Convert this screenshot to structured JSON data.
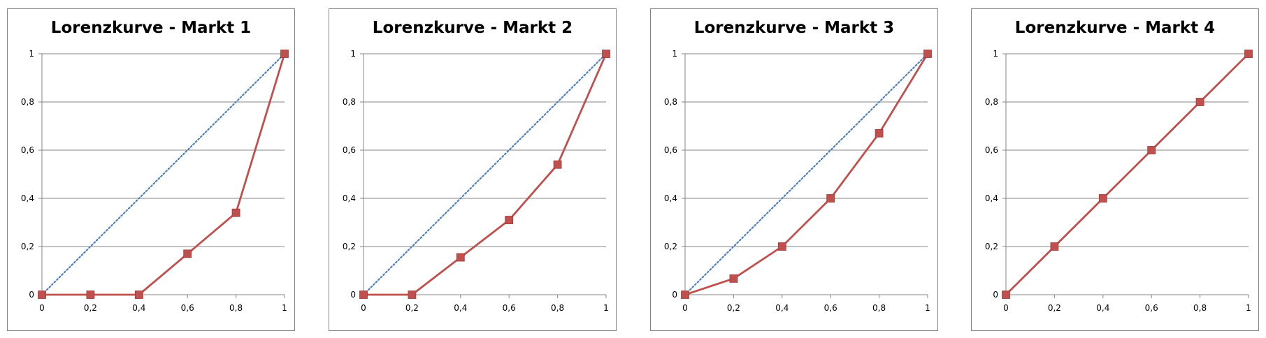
{
  "chart_data": [
    {
      "type": "line",
      "title": "Lorenzkurve - Markt 1",
      "xlabel": "",
      "ylabel": "",
      "xlim": [
        0,
        1
      ],
      "ylim": [
        0,
        1
      ],
      "x_ticks": [
        "0",
        "0,2",
        "0,4",
        "0,6",
        "0,8",
        "1"
      ],
      "y_ticks": [
        "0",
        "0,2",
        "0,4",
        "0,6",
        "0,8",
        "1"
      ],
      "grid": "horizontal",
      "legend": "none",
      "series": [
        {
          "style": "dotted",
          "color": "#4f81bd",
          "x": [
            0,
            1
          ],
          "y": [
            0,
            1
          ]
        },
        {
          "style": "solid-square-markers",
          "color": "#c0504d",
          "x": [
            0,
            0.2,
            0.4,
            0.6,
            0.8,
            1
          ],
          "y": [
            0,
            0,
            0,
            0.17,
            0.34,
            1
          ]
        }
      ]
    },
    {
      "type": "line",
      "title": "Lorenzkurve - Markt 2",
      "xlabel": "",
      "ylabel": "",
      "xlim": [
        0,
        1
      ],
      "ylim": [
        0,
        1
      ],
      "x_ticks": [
        "0",
        "0,2",
        "0,4",
        "0,6",
        "0,8",
        "1"
      ],
      "y_ticks": [
        "0",
        "0,2",
        "0,4",
        "0,6",
        "0,8",
        "1"
      ],
      "grid": "horizontal",
      "legend": "none",
      "series": [
        {
          "style": "dotted",
          "color": "#4f81bd",
          "x": [
            0,
            1
          ],
          "y": [
            0,
            1
          ]
        },
        {
          "style": "solid-square-markers",
          "color": "#c0504d",
          "x": [
            0,
            0.2,
            0.4,
            0.6,
            0.8,
            1
          ],
          "y": [
            0,
            0,
            0.155,
            0.31,
            0.54,
            1
          ]
        }
      ]
    },
    {
      "type": "line",
      "title": "Lorenzkurve - Markt 3",
      "xlabel": "",
      "ylabel": "",
      "xlim": [
        0,
        1
      ],
      "ylim": [
        0,
        1
      ],
      "x_ticks": [
        "0",
        "0,2",
        "0,4",
        "0,6",
        "0,8",
        "1"
      ],
      "y_ticks": [
        "0",
        "0,2",
        "0,4",
        "0,6",
        "0,8",
        "1"
      ],
      "grid": "horizontal",
      "legend": "none",
      "series": [
        {
          "style": "dotted",
          "color": "#4f81bd",
          "x": [
            0,
            1
          ],
          "y": [
            0,
            1
          ]
        },
        {
          "style": "solid-square-markers",
          "color": "#c0504d",
          "x": [
            0,
            0.2,
            0.4,
            0.6,
            0.8,
            1
          ],
          "y": [
            0,
            0.067,
            0.2,
            0.4,
            0.67,
            1
          ]
        }
      ]
    },
    {
      "type": "line",
      "title": "Lorenzkurve - Markt 4",
      "xlabel": "",
      "ylabel": "",
      "xlim": [
        0,
        1
      ],
      "ylim": [
        0,
        1
      ],
      "x_ticks": [
        "0",
        "0,2",
        "0,4",
        "0,6",
        "0,8",
        "1"
      ],
      "y_ticks": [
        "0",
        "0,2",
        "0,4",
        "0,6",
        "0,8",
        "1"
      ],
      "grid": "horizontal",
      "legend": "none",
      "series": [
        {
          "style": "dotted",
          "color": "#4f81bd",
          "x": [
            0,
            1
          ],
          "y": [
            0,
            1
          ]
        },
        {
          "style": "solid-square-markers",
          "color": "#c0504d",
          "x": [
            0,
            0.2,
            0.4,
            0.6,
            0.8,
            1
          ],
          "y": [
            0,
            0.2,
            0.4,
            0.6,
            0.8,
            1
          ]
        }
      ]
    }
  ]
}
